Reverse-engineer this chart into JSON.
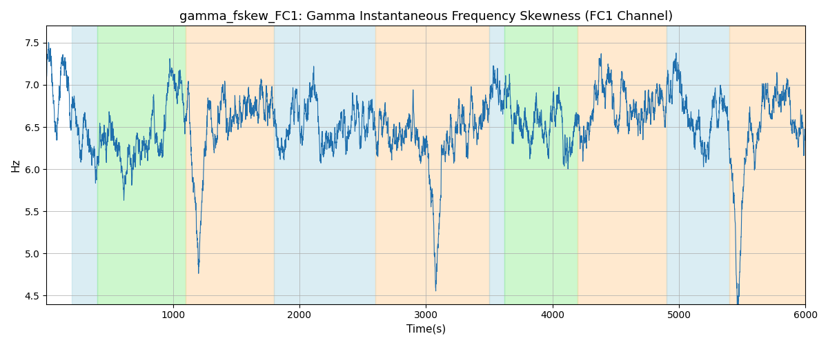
{
  "title": "gamma_fskew_FC1: Gamma Instantaneous Frequency Skewness (FC1 Channel)",
  "xlabel": "Time(s)",
  "ylabel": "Hz",
  "xlim": [
    0,
    6000
  ],
  "ylim": [
    4.4,
    7.7
  ],
  "line_color": "#1f6fad",
  "line_width": 0.8,
  "background_color": "#ffffff",
  "grid_color": "#aaaaaa",
  "colored_bands": [
    {
      "xmin": 200,
      "xmax": 400,
      "color": "#add8e6",
      "alpha": 0.45
    },
    {
      "xmin": 400,
      "xmax": 1100,
      "color": "#90ee90",
      "alpha": 0.45
    },
    {
      "xmin": 1100,
      "xmax": 1800,
      "color": "#ffd8a8",
      "alpha": 0.55
    },
    {
      "xmin": 1800,
      "xmax": 2600,
      "color": "#add8e6",
      "alpha": 0.45
    },
    {
      "xmin": 2600,
      "xmax": 3500,
      "color": "#ffd8a8",
      "alpha": 0.55
    },
    {
      "xmin": 3500,
      "xmax": 3620,
      "color": "#add8e6",
      "alpha": 0.45
    },
    {
      "xmin": 3620,
      "xmax": 4200,
      "color": "#90ee90",
      "alpha": 0.45
    },
    {
      "xmin": 4200,
      "xmax": 4900,
      "color": "#ffd8a8",
      "alpha": 0.55
    },
    {
      "xmin": 4900,
      "xmax": 5400,
      "color": "#add8e6",
      "alpha": 0.45
    },
    {
      "xmin": 5400,
      "xmax": 6000,
      "color": "#ffd8a8",
      "alpha": 0.55
    }
  ],
  "title_fontsize": 13,
  "xticks": [
    1000,
    2000,
    3000,
    4000,
    5000,
    6000
  ]
}
